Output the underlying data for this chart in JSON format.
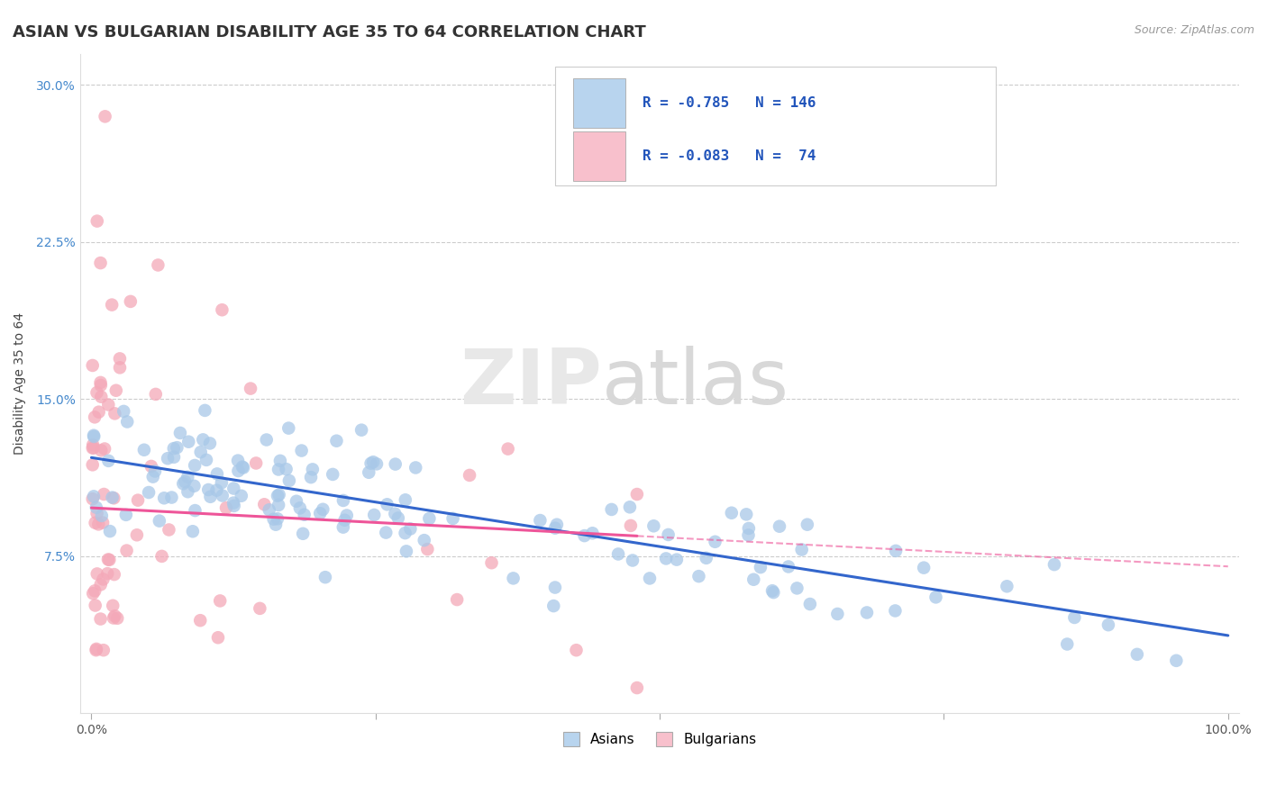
{
  "title": "ASIAN VS BULGARIAN DISABILITY AGE 35 TO 64 CORRELATION CHART",
  "source": "Source: ZipAtlas.com",
  "xlabel": "",
  "ylabel": "Disability Age 35 to 64",
  "xlim": [
    -0.01,
    1.01
  ],
  "ylim": [
    0.0,
    0.315
  ],
  "yticks": [
    0.075,
    0.15,
    0.225,
    0.3
  ],
  "ytick_labels": [
    "7.5%",
    "15.0%",
    "22.5%",
    "30.0%"
  ],
  "xticks": [
    0.0,
    1.0
  ],
  "xtick_labels": [
    "0.0%",
    "100.0%"
  ],
  "asian_R": -0.785,
  "asian_N": 146,
  "bulgarian_R": -0.083,
  "bulgarian_N": 74,
  "asian_color": "#a8c8e8",
  "bulgarian_color": "#f4a8b8",
  "asian_line_color": "#3366cc",
  "bulgarian_line_color": "#ee5599",
  "legend_box_color_asian": "#b8d4ee",
  "legend_box_color_bulgarian": "#f8c0cc",
  "background_color": "#ffffff",
  "grid_color": "#cccccc",
  "title_fontsize": 13,
  "axis_label_fontsize": 10,
  "tick_fontsize": 10,
  "asian_line_intercept": 0.122,
  "asian_line_slope": -0.085,
  "bulgarian_line_intercept": 0.098,
  "bulgarian_line_slope": -0.028
}
